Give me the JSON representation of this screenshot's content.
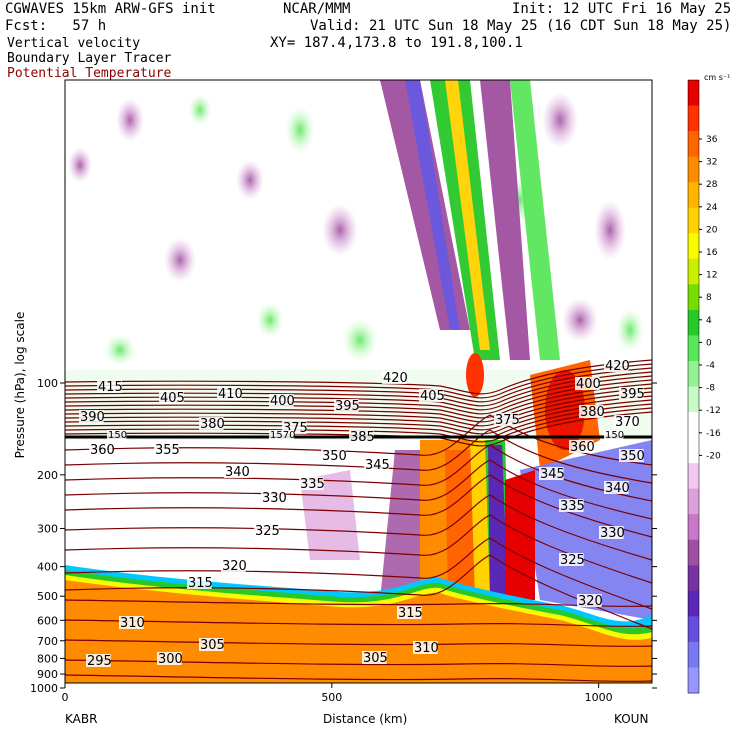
{
  "header": {
    "model": "CGWAVES 15km ARW-GFS init",
    "org": "NCAR/MMM",
    "init": "Init: 12 UTC Fri 16 May 25",
    "fcst": "Fcst:   57 h",
    "valid": "Valid: 21 UTC Sun 18 May 25 (16 CDT Sun 18 May 25)",
    "xy": "XY= 187.4,173.8 to 191.8,100.1",
    "field1": "Vertical velocity",
    "field2": "Boundary Layer Tracer",
    "field3": "Potential Temperature"
  },
  "colors": {
    "contour": "#7a0000",
    "field3_text": "#8b0000"
  },
  "chart_data": {
    "type": "heatmap",
    "title": "",
    "xlabel": "Distance (km)",
    "ylabel": "Pressure (hPa), log scale",
    "x_ticks": [
      0,
      500,
      1000
    ],
    "y_ticks": [
      100,
      200,
      300,
      400,
      500,
      600,
      700,
      800,
      900,
      1000
    ],
    "y_scale": "log",
    "x_endpoints": {
      "left": "KABR",
      "right": "KOUN"
    },
    "colorbar": {
      "unit": "cm s⁻¹",
      "ticks": [
        36,
        32,
        28,
        24,
        20,
        16,
        12,
        8,
        4,
        0,
        -4,
        -8,
        -12,
        -16,
        -20
      ],
      "colors": [
        "#e60000",
        "#ff3200",
        "#ff6400",
        "#ff8c00",
        "#ffb400",
        "#ffd200",
        "#fafa00",
        "#c8f000",
        "#78dc00",
        "#28c828",
        "#5ae65a",
        "#96f096",
        "#c8fac8",
        "#ffffff",
        "#ffffff",
        "#f0c8f0",
        "#dca0dc",
        "#c878c8",
        "#a050a0",
        "#7832a0",
        "#5a28b4",
        "#6450dc",
        "#7878f0",
        "#9696ff"
      ]
    },
    "contour_labels": [
      {
        "text": "415"
      },
      {
        "text": "405"
      },
      {
        "text": "410"
      },
      {
        "text": "400"
      },
      {
        "text": "420"
      },
      {
        "text": "395"
      },
      {
        "text": "405"
      },
      {
        "text": "400"
      },
      {
        "text": "420"
      },
      {
        "text": "395"
      },
      {
        "text": "390"
      },
      {
        "text": "380"
      },
      {
        "text": "375"
      },
      {
        "text": "385"
      },
      {
        "text": "375"
      },
      {
        "text": "380"
      },
      {
        "text": "370"
      },
      {
        "text": "360"
      },
      {
        "text": "355"
      },
      {
        "text": "350"
      },
      {
        "text": "345"
      },
      {
        "text": "360"
      },
      {
        "text": "350"
      },
      {
        "text": "340"
      },
      {
        "text": "335"
      },
      {
        "text": "345"
      },
      {
        "text": "340"
      },
      {
        "text": "330"
      },
      {
        "text": "335"
      },
      {
        "text": "325"
      },
      {
        "text": "330"
      },
      {
        "text": "325"
      },
      {
        "text": "320"
      },
      {
        "text": "315"
      },
      {
        "text": "320"
      },
      {
        "text": "315"
      },
      {
        "text": "310"
      },
      {
        "text": "305"
      },
      {
        "text": "310"
      },
      {
        "text": "305"
      },
      {
        "text": "300"
      },
      {
        "text": "295"
      },
      {
        "text": "150"
      },
      {
        "text": "1570"
      },
      {
        "text": "150"
      }
    ]
  }
}
